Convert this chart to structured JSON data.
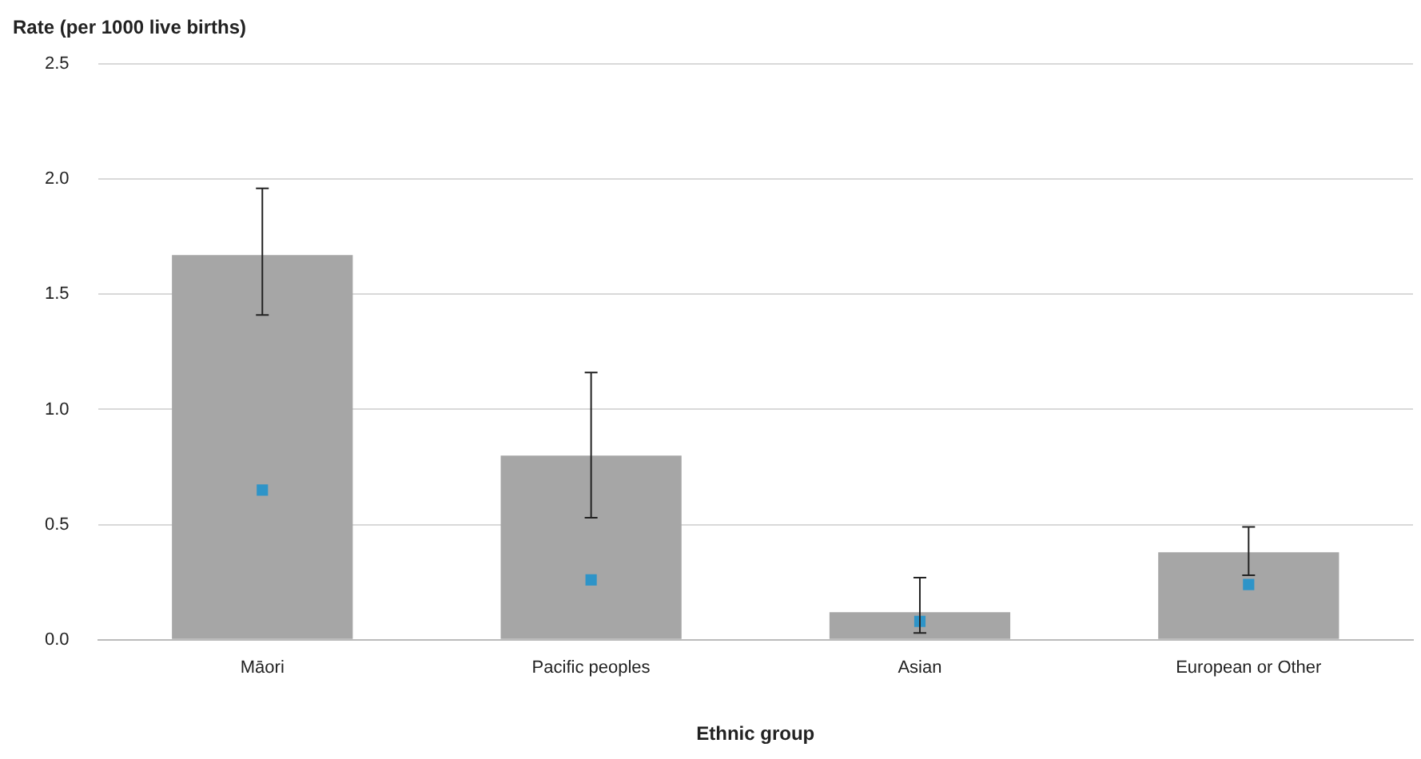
{
  "chart_data": {
    "type": "bar",
    "xlabel": "Ethnic group",
    "ylabel": "Rate (per 1000 live births)",
    "categories": [
      "Māori",
      "Pacific peoples",
      "Asian",
      "European or Other"
    ],
    "series": [
      {
        "color": "#a6a6a6",
        "values": [
          1.67,
          0.8,
          0.12,
          0.38
        ],
        "errors": [
          [
            1.41,
            1.96
          ],
          [
            0.53,
            1.16
          ],
          [
            0.03,
            0.27
          ],
          [
            0.28,
            0.49
          ]
        ]
      },
      {
        "type": "scatter",
        "marker": "square",
        "color": "#2e94c8",
        "x": [
          "Māori",
          "Pacific peoples",
          "Asian",
          "European or Other"
        ],
        "values": [
          0.65,
          0.26,
          0.08,
          0.24
        ]
      }
    ],
    "ylim": [
      0,
      2.5
    ],
    "yticks": [
      {
        "value": 0,
        "label": "0.0"
      },
      0.5,
      {
        "value": 1,
        "label": "1.0"
      },
      1.5,
      {
        "value": 2,
        "label": "2.0"
      },
      2.5
    ],
    "grid": "y",
    "legend": false
  }
}
